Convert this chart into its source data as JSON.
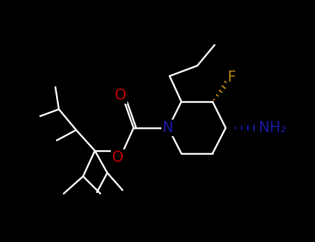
{
  "bg_color": "#000000",
  "bond_color": "#ffffff",
  "N_color": "#1a1aaa",
  "O_color": "#cc0000",
  "F_color": "#b8860b",
  "NH2_color": "#1a1aaa",
  "label_F": "F",
  "label_N": "N",
  "label_O_carbonyl": "O",
  "label_O_ester": "O",
  "label_NH2": "NH₂",
  "font_size_atoms": 14,
  "lw": 1.8
}
